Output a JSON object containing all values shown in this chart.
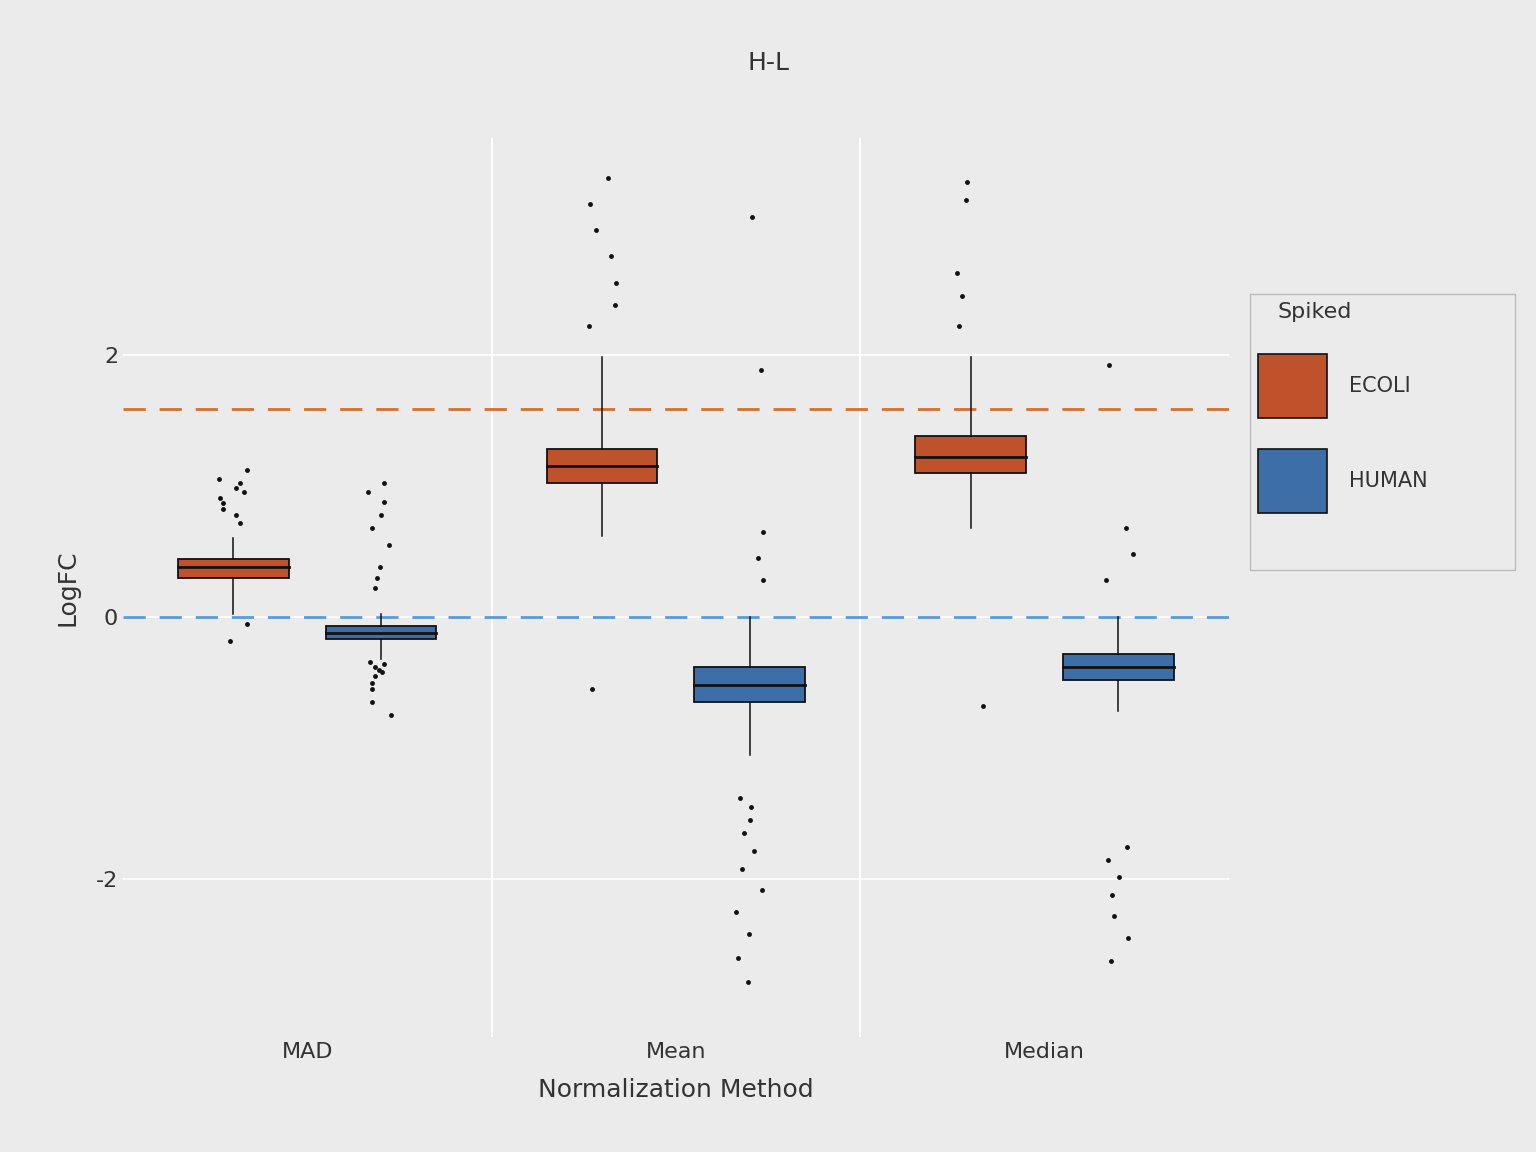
{
  "title": "H-L",
  "xlabel": "Normalization Method",
  "ylabel": "LogFC",
  "red_line_y": 1.585,
  "blue_line_y": 0.0,
  "background_color": "#EBEBEB",
  "panel_color": "#EBEBEB",
  "title_bg_color": "#D3D3D3",
  "ecoli_color": "#C0522B",
  "human_color": "#3D6EA8",
  "methods": [
    "MAD",
    "Mean",
    "Median"
  ],
  "ecoli_MAD": {
    "q1": 0.3,
    "median": 0.38,
    "q3": 0.44,
    "whisker_low": 0.02,
    "whisker_high": 0.6,
    "outliers": [
      -0.18,
      -0.05,
      0.72,
      0.78,
      0.82,
      0.87,
      0.91,
      0.95,
      0.98,
      1.02,
      1.05,
      1.12
    ]
  },
  "human_MAD": {
    "q1": -0.17,
    "median": -0.12,
    "q3": -0.07,
    "whisker_low": -0.32,
    "whisker_high": 0.02,
    "outliers": [
      -0.75,
      -0.65,
      -0.55,
      -0.5,
      -0.45,
      -0.42,
      -0.4,
      -0.38,
      -0.36,
      -0.34,
      0.22,
      0.3,
      0.38,
      0.55,
      0.68,
      0.78,
      0.88,
      0.95,
      1.02
    ]
  },
  "ecoli_Mean": {
    "q1": 1.02,
    "median": 1.15,
    "q3": 1.28,
    "whisker_low": 0.62,
    "whisker_high": 1.98,
    "outliers": [
      -0.55,
      2.22,
      2.38,
      2.55,
      2.75,
      2.95,
      3.15,
      3.35
    ]
  },
  "human_Mean": {
    "q1": -0.65,
    "median": -0.52,
    "q3": -0.38,
    "whisker_low": -1.05,
    "whisker_high": 0.0,
    "outliers": [
      -2.78,
      -2.6,
      -2.42,
      -2.25,
      -2.08,
      -1.92,
      -1.78,
      -1.65,
      -1.55,
      -1.45,
      -1.38,
      0.28,
      0.45,
      0.65,
      1.88,
      3.05
    ]
  },
  "ecoli_Median": {
    "q1": 1.1,
    "median": 1.22,
    "q3": 1.38,
    "whisker_low": 0.68,
    "whisker_high": 1.98,
    "outliers": [
      -0.68,
      2.22,
      2.45,
      2.62,
      3.18,
      3.32
    ]
  },
  "human_Median": {
    "q1": -0.48,
    "median": -0.38,
    "q3": -0.28,
    "whisker_low": -0.72,
    "whisker_high": 0.0,
    "outliers": [
      -2.62,
      -2.45,
      -2.28,
      -2.12,
      -1.98,
      -1.85,
      -1.75,
      0.28,
      0.48,
      0.68,
      1.92
    ]
  }
}
